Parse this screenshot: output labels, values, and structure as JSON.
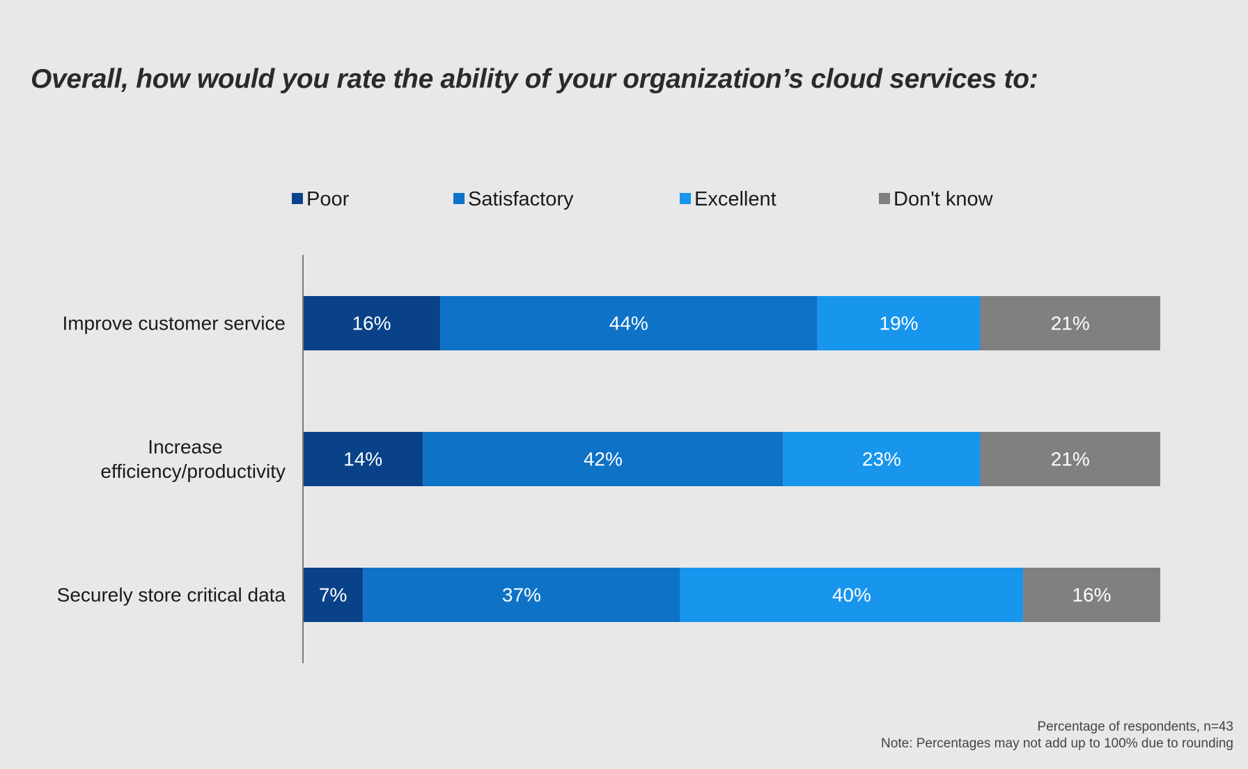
{
  "title": "Overall, how would you rate the ability of your organization’s cloud services to:",
  "footnote": {
    "line1": "Percentage of respondents, n=43",
    "line2": "Note: Percentages may not add up to 100% due to rounding"
  },
  "chart_data": {
    "type": "bar",
    "orientation": "horizontal",
    "stacked": true,
    "title": "Overall, how would you rate the ability of your organization’s cloud services to:",
    "categories": [
      "Improve customer service",
      "Increase efficiency/productivity",
      "Securely store critical data"
    ],
    "category_label_lines": [
      [
        "Improve customer service"
      ],
      [
        "Increase",
        "efficiency/productivity"
      ],
      [
        "Securely store critical data"
      ]
    ],
    "series": [
      {
        "name": "Poor",
        "color": "#0a4289",
        "values": [
          16,
          14,
          7
        ]
      },
      {
        "name": "Satisfactory",
        "color": "#0e72c7",
        "values": [
          44,
          42,
          37
        ]
      },
      {
        "name": "Excellent",
        "color": "#1895ed",
        "values": [
          19,
          23,
          40
        ]
      },
      {
        "name": "Don't know",
        "color": "#808080",
        "values": [
          21,
          21,
          16
        ]
      }
    ],
    "data_labels": [
      [
        "16%",
        "14%",
        "7%"
      ],
      [
        "44%",
        "42%",
        "37%"
      ],
      [
        "19%",
        "23%",
        "40%"
      ],
      [
        "21%",
        "21%",
        "16%"
      ]
    ],
    "legend_position": "top",
    "grid": false,
    "xlabel": "",
    "ylabel": ""
  }
}
